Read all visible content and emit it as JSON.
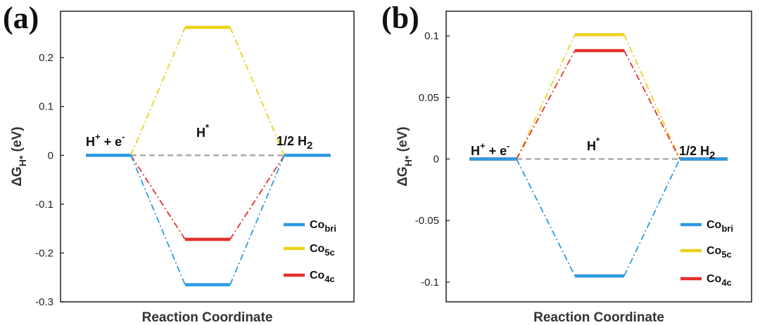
{
  "chart_data": [
    {
      "type": "line",
      "panel_label": "(a)",
      "xlabel": "Reaction Coordinate",
      "ylabel_main": "ΔG",
      "ylabel_sub": "H*",
      "ylabel_unit": "(eV)",
      "ylim": [
        -0.3,
        0.3
      ],
      "yticks": [
        0.2,
        0.1,
        0,
        -0.1,
        -0.2,
        -0.3
      ],
      "ytick_labels": [
        "0.2",
        "0.1",
        "0",
        "-0.1",
        "-0.2",
        "-0.3"
      ],
      "grid": false,
      "legend_position": "bottom-right",
      "states": [
        {
          "label": "H",
          "sup": "+",
          "tail": "+ e",
          "tail_sup": "-"
        },
        {
          "label": "H",
          "sup": "*",
          "tail": "",
          "tail_sup": ""
        },
        {
          "label": "1/2 H",
          "sub": "2",
          "tail": "",
          "tail_sup": ""
        }
      ],
      "series": [
        {
          "name": "Co",
          "sub": "bri",
          "color": "#2d9be3",
          "values": [
            0,
            -0.265,
            0
          ]
        },
        {
          "name": "Co",
          "sub": "5c",
          "color": "#ebd21a",
          "values": [
            0,
            0.262,
            0
          ]
        },
        {
          "name": "Co",
          "sub": "4c",
          "color": "#e4302e",
          "values": [
            0,
            -0.172,
            0
          ]
        }
      ]
    },
    {
      "type": "line",
      "panel_label": "(b)",
      "xlabel": "Reaction Coordinate",
      "ylabel_main": "ΔG",
      "ylabel_sub": "H*",
      "ylabel_unit": "(eV)",
      "ylim": [
        -0.11,
        0.12
      ],
      "yticks": [
        0.1,
        0.05,
        0,
        -0.05,
        -0.1
      ],
      "ytick_labels": [
        "0.1",
        "0.05",
        "0",
        "-0.05",
        "-0.1"
      ],
      "grid": false,
      "legend_position": "bottom-right",
      "states": [
        {
          "label": "H",
          "sup": "+",
          "tail": "+ e",
          "tail_sup": "-"
        },
        {
          "label": "H",
          "sup": "*",
          "tail": "",
          "tail_sup": ""
        },
        {
          "label": "1/2 H",
          "sub": "2",
          "tail": "",
          "tail_sup": ""
        }
      ],
      "series": [
        {
          "name": "Co",
          "sub": "bri",
          "color": "#2d9be3",
          "values": [
            0,
            -0.095,
            0
          ]
        },
        {
          "name": "Co",
          "sub": "5c",
          "color": "#ebd21a",
          "values": [
            0,
            0.101,
            0
          ]
        },
        {
          "name": "Co",
          "sub": "4c",
          "color": "#e4302e",
          "values": [
            0,
            0.088,
            0
          ]
        }
      ]
    }
  ]
}
